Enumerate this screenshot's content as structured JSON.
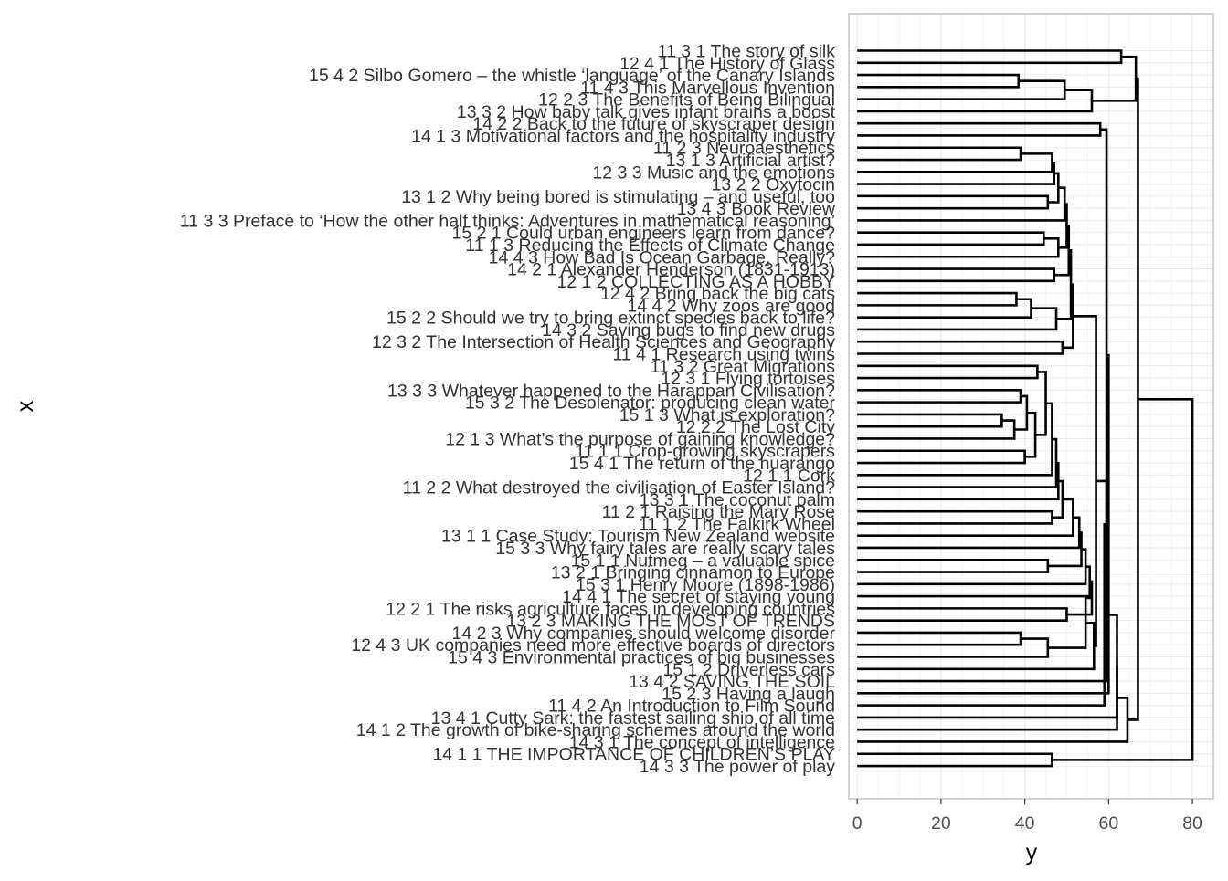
{
  "chart_data": {
    "type": "dendrogram",
    "orientation": "horizontal",
    "xlabel": "y",
    "ylabel": "x",
    "xlim": [
      -2,
      85
    ],
    "x_ticks": [
      0,
      20,
      40,
      60,
      80
    ],
    "x_tick_labels": [
      "0",
      "20",
      "40",
      "60",
      "80"
    ],
    "grid": true,
    "colors": {
      "panel_border": "#b3b3b3",
      "grid": "#ebebeb",
      "branch": "#000000",
      "text": "#333333"
    },
    "leaves": [
      "11 3 1 The story of silk",
      "12 4 1 The History of Glass",
      "15 4 2 Silbo Gomero – the whistle ‘language’ of the Canary Islands",
      "11 4 3 This Marvellous Invention",
      "12 2 3 The Benefits of Being Bilingual",
      "13 3 2 How baby talk gives infant brains a boost",
      "14 2 2 Back to the future of skyscraper design",
      "14 1 3 Motivational factors and the hospitality industry",
      "11 2 3 Neuroaesthetics",
      "13 1 3 Artificial artist?",
      "12 3 3 Music and the emotions",
      "13 2 2 Oxytocin",
      "13 1 2 Why being bored is stimulating – and useful, too",
      "13 4 3 Book Review",
      "11 3 3 Preface to ‘How the other half thinks: Adventures in mathematical reasoning’",
      "15 2 1 Could urban engineers learn from dance?",
      "11 1 3 Reducing the Effects of Climate Change",
      "14 4 3 How Bad Is Ocean Garbage, Really?",
      "14 2 1 Alexander Henderson (1831-1913)",
      "12 1 2 COLLECTING AS A HOBBY",
      "12 4 2 Bring back the big cats",
      "14 4 2 Why zoos are good",
      "15 2 2 Should we try to bring extinct species back to life?",
      "14 3 2 Saving bugs to find new drugs",
      "12 3 2 The Intersection of Health Sciences and Geography",
      "11 4 1 Research using twins",
      "11 3 2 Great Migrations",
      "12 3 1 Flying tortoises",
      "13 3 3 Whatever happened to the Harappan Civilisation?",
      "15 3 2 The Desolenator: producing clean water",
      "15 1 3 What is exploration?",
      "12 2 2 The Lost City",
      "12 1 3 What’s the purpose of gaining knowledge?",
      "11 1 1 Crop-growing skyscrapers",
      "15 4 1 The return of the huarango",
      "12 1 1 Cork",
      "11 2 2 What destroyed the civilisation of Easter Island?",
      "13 3 1 The coconut palm",
      "11 2 1 Raising the Mary Rose",
      "11 1 2 The Falkirk Wheel",
      "13 1 1 Case Study: Tourism New Zealand website",
      "15 3 3 Why fairy tales are really scary tales",
      "15 1 1 Nutmeg – a valuable spice",
      "13 2 1 Bringing cinnamon to Europe",
      "15 3 1 Henry Moore (1898-1986)",
      "14 4 1 The secret of staying young",
      "12 2 1 The risks agriculture faces in developing countries",
      "13 2 3 MAKING THE MOST OF TRENDS",
      "14 2 3 Why companies should welcome disorder",
      "12 4 3 UK companies need more effective boards of directors",
      "15 4 3 Environmental practices of big businesses",
      "15 1 2 Driverless cars",
      "13 4 2 SAVING THE SOIL",
      "15 2 3 Having a laugh",
      "11 4 2 An Introduction to Film Sound",
      "13 4 1 Cutty Sark: the fastest sailing ship of all time",
      "14 1 2 The growth of bike-sharing schemes around the world",
      "14 3 1 The concept of intelligence",
      "14 1 1 THE IMPORTANCE OF CHILDREN’S PLAY",
      "14 3 3 The power of play"
    ],
    "merges": [
      {
        "a": "L0",
        "b": "L1",
        "h": 63
      },
      {
        "a": "L2",
        "b": "L3",
        "h": 38.5
      },
      {
        "a": "N1",
        "b": "L4",
        "h": 49.5
      },
      {
        "a": "N2",
        "b": "L5",
        "h": 56
      },
      {
        "a": "N0",
        "b": "N3",
        "h": 66.5
      },
      {
        "a": "L6",
        "b": "L7",
        "h": 58
      },
      {
        "a": "L8",
        "b": "L9",
        "h": 39
      },
      {
        "a": "N6",
        "b": "L10",
        "h": 46.5
      },
      {
        "a": "L12",
        "b": "L13",
        "h": 45.5
      },
      {
        "a": "N7",
        "b": "L11",
        "h": 47
      },
      {
        "a": "N9",
        "b": "N8",
        "h": 48
      },
      {
        "a": "N10",
        "b": "L14",
        "h": 49.5
      },
      {
        "a": "L15",
        "b": "L16",
        "h": 44.5
      },
      {
        "a": "N12",
        "b": "L17",
        "h": 48
      },
      {
        "a": "N11",
        "b": "N13",
        "h": 50
      },
      {
        "a": "L18",
        "b": "L19",
        "h": 47
      },
      {
        "a": "N14",
        "b": "N15",
        "h": 50.5
      },
      {
        "a": "L20",
        "b": "L21",
        "h": 38
      },
      {
        "a": "N17",
        "b": "L22",
        "h": 41.5
      },
      {
        "a": "N18",
        "b": "L23",
        "h": 47.5
      },
      {
        "a": "N16",
        "b": "N19",
        "h": 51
      },
      {
        "a": "L24",
        "b": "L25",
        "h": 49
      },
      {
        "a": "N20",
        "b": "N21",
        "h": 51.5
      },
      {
        "a": "L26",
        "b": "L27",
        "h": 43
      },
      {
        "a": "L28",
        "b": "L29",
        "h": 39
      },
      {
        "a": "L30",
        "b": "L31",
        "h": 34.5
      },
      {
        "a": "N25",
        "b": "L32",
        "h": 37.5
      },
      {
        "a": "N24",
        "b": "N26",
        "h": 40.5
      },
      {
        "a": "L33",
        "b": "L34",
        "h": 40
      },
      {
        "a": "N27",
        "b": "N28",
        "h": 42.5
      },
      {
        "a": "N23",
        "b": "N29",
        "h": 45
      },
      {
        "a": "N30",
        "b": "L35",
        "h": 46.5
      },
      {
        "a": "N31",
        "b": "L36",
        "h": 47.5
      },
      {
        "a": "N32",
        "b": "L37",
        "h": 48
      },
      {
        "a": "L38",
        "b": "L39",
        "h": 46.5
      },
      {
        "a": "N33",
        "b": "N34",
        "h": 49
      },
      {
        "a": "N35",
        "b": "L40",
        "h": 51.5
      },
      {
        "a": "N36",
        "b": "L41",
        "h": 53
      },
      {
        "a": "L42",
        "b": "L43",
        "h": 45.5
      },
      {
        "a": "N37",
        "b": "N38",
        "h": 53.5
      },
      {
        "a": "N39",
        "b": "L44",
        "h": 54.5
      },
      {
        "a": "N40",
        "b": "L45",
        "h": 55.5
      },
      {
        "a": "L46",
        "b": "L47",
        "h": 50
      },
      {
        "a": "N41",
        "b": "N42",
        "h": 56
      },
      {
        "a": "L48",
        "b": "L49",
        "h": 39
      },
      {
        "a": "N44",
        "b": "L50",
        "h": 45.5
      },
      {
        "a": "N43",
        "b": "N45",
        "h": 54.5
      },
      {
        "a": "N46",
        "b": "L51",
        "h": 56.5
      },
      {
        "a": "N22",
        "b": "N47",
        "h": 57
      },
      {
        "a": "N48",
        "b": "L52",
        "h": 59.5
      },
      {
        "a": "N5",
        "b": "N49",
        "h": 59.5
      },
      {
        "a": "N50",
        "b": "L53",
        "h": 60
      },
      {
        "a": "N51",
        "b": "L54",
        "h": 59
      },
      {
        "a": "N52",
        "b": "L55",
        "h": 62
      },
      {
        "a": "N53",
        "b": "L56",
        "h": 62
      },
      {
        "a": "N54",
        "b": "L57",
        "h": 64.5
      },
      {
        "a": "N4",
        "b": "N55",
        "h": 67
      },
      {
        "a": "L58",
        "b": "L59",
        "h": 46.5
      },
      {
        "a": "N56",
        "b": "N57",
        "h": 80
      }
    ]
  }
}
